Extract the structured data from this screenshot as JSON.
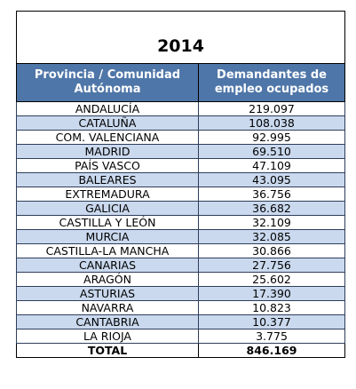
{
  "year": "2014",
  "headers": {
    "region": "Provincia / Comunidad Autónoma",
    "value": "Demandantes de empleo ocupados"
  },
  "rows": [
    {
      "region": "ANDALUCÍA",
      "value": "219.097"
    },
    {
      "region": "CATALUÑA",
      "value": "108.038"
    },
    {
      "region": "COM. VALENCIANA",
      "value": "92.995"
    },
    {
      "region": "MADRID",
      "value": "69.510"
    },
    {
      "region": "PAÍS VASCO",
      "value": "47.109"
    },
    {
      "region": "BALEARES",
      "value": "43.095"
    },
    {
      "region": "EXTREMADURA",
      "value": "36.756"
    },
    {
      "region": "GALICIA",
      "value": "36.682"
    },
    {
      "region": "CASTILLA Y LEÓN",
      "value": "32.109"
    },
    {
      "region": "MURCIA",
      "value": "32.085"
    },
    {
      "region": "CASTILLA-LA MANCHA",
      "value": "30.866"
    },
    {
      "region": "CANARIAS",
      "value": "27.756"
    },
    {
      "region": "ARAGÓN",
      "value": "25.602"
    },
    {
      "region": "ASTURIAS",
      "value": "17.390"
    },
    {
      "region": "NAVARRA",
      "value": "10.823"
    },
    {
      "region": "CANTABRIA",
      "value": "10.377"
    },
    {
      "region": "LA RIOJA",
      "value": "3.775"
    }
  ],
  "total": {
    "label": "TOTAL",
    "value": "846.169"
  },
  "colors": {
    "header": "#4f76a8",
    "band": "#cad9ee"
  }
}
